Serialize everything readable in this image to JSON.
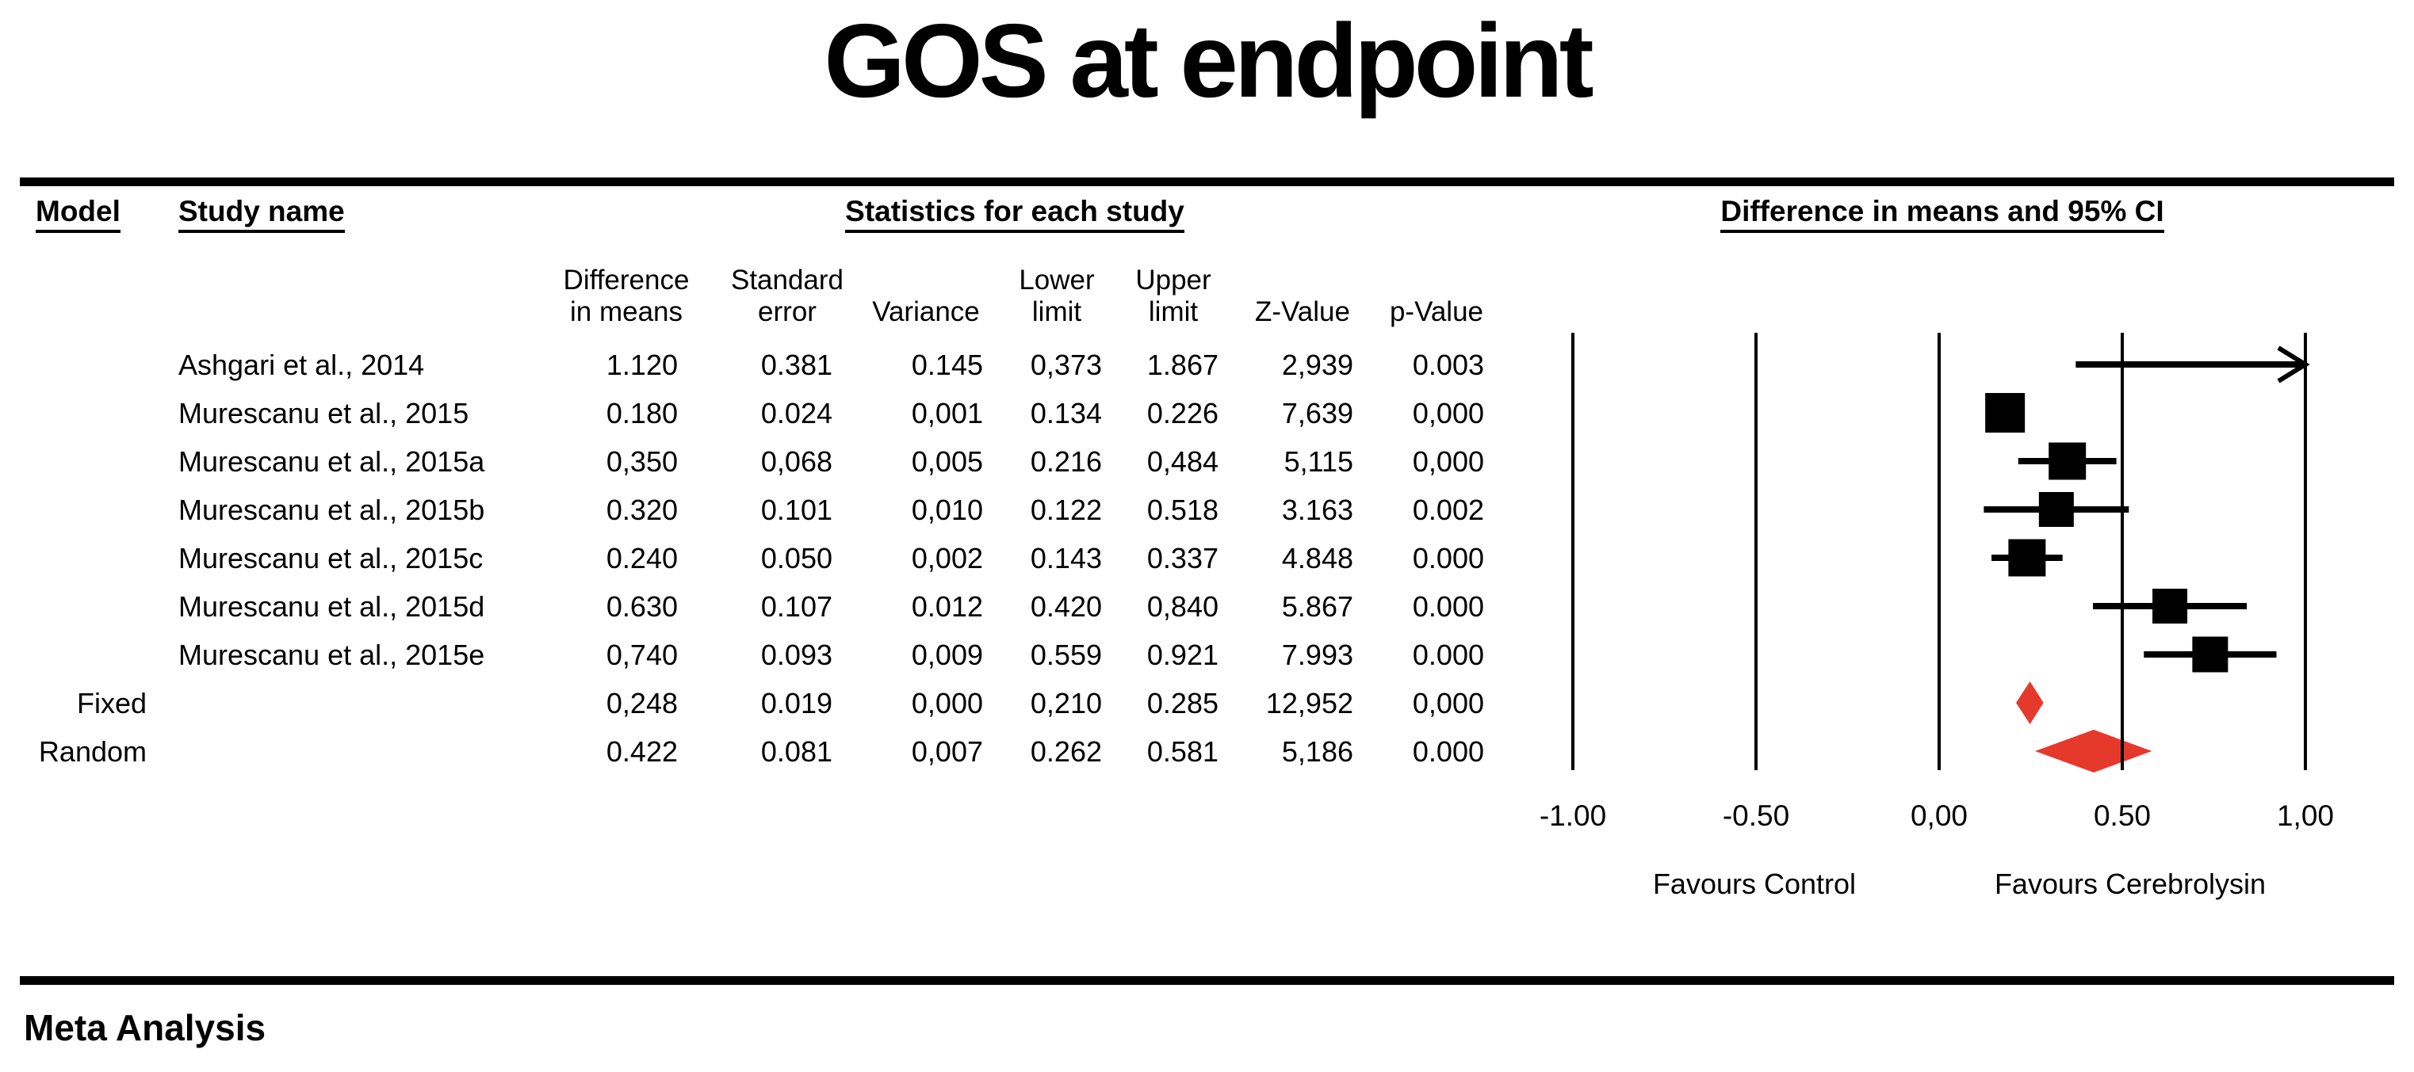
{
  "title": "GOS at endpoint",
  "footer": "Meta Analysis",
  "headers": {
    "model": "Model",
    "study_name": "Study name",
    "stats_group": "Statistics for each study",
    "ci_group": "Difference in means and 95% CI",
    "stat_cols": [
      "Difference\nin means",
      "Standard\nerror",
      "Variance",
      "Lower\nlimit",
      "Upper\nlimit",
      "Z-Value",
      "p-Value"
    ]
  },
  "chart_data": {
    "type": "forest",
    "title": "GOS at endpoint",
    "x_axis": {
      "min": -1.0,
      "max": 1.0,
      "tick_values": [
        -1.0,
        -0.5,
        0.0,
        0.5,
        1.0
      ],
      "tick_labels": [
        "-1.00",
        "-0.50",
        "0,00",
        "0.50",
        "1,00"
      ]
    },
    "footer_labels": {
      "left": "Favours Control",
      "right": "Favours Cerebrolysin"
    },
    "colors": {
      "marker": "#000000",
      "summary_diamond": "#e5392c"
    },
    "grid": true,
    "rows": [
      {
        "model": "",
        "study": "Ashgari et al., 2014",
        "difference_in_means": "1.120",
        "standard_error": "0.381",
        "variance": "0.145",
        "lower_limit": "0,373",
        "upper_limit": "1.867",
        "z_value": "2,939",
        "p_value": "0.003",
        "mean": 1.12,
        "lower": 0.373,
        "upper": 1.867,
        "marker": "arrow-right"
      },
      {
        "model": "",
        "study": "Murescanu et al., 2015",
        "difference_in_means": "0.180",
        "standard_error": "0.024",
        "variance": "0,001",
        "lower_limit": "0.134",
        "upper_limit": "0.226",
        "z_value": "7,639",
        "p_value": "0,000",
        "mean": 0.18,
        "lower": 0.134,
        "upper": 0.226,
        "marker": "square",
        "marker_size": 50
      },
      {
        "model": "",
        "study": "Murescanu et al., 2015a",
        "difference_in_means": "0,350",
        "standard_error": "0,068",
        "variance": "0,005",
        "lower_limit": "0.216",
        "upper_limit": "0,484",
        "z_value": "5,115",
        "p_value": "0,000",
        "mean": 0.35,
        "lower": 0.216,
        "upper": 0.484,
        "marker": "square",
        "marker_size": 47
      },
      {
        "model": "",
        "study": "Murescanu et al., 2015b",
        "difference_in_means": "0.320",
        "standard_error": "0.101",
        "variance": "0,010",
        "lower_limit": "0.122",
        "upper_limit": "0.518",
        "z_value": "3.163",
        "p_value": "0.002",
        "mean": 0.32,
        "lower": 0.122,
        "upper": 0.518,
        "marker": "square",
        "marker_size": 44
      },
      {
        "model": "",
        "study": "Murescanu et al., 2015c",
        "difference_in_means": "0.240",
        "standard_error": "0.050",
        "variance": "0,002",
        "lower_limit": "0.143",
        "upper_limit": "0.337",
        "z_value": "4.848",
        "p_value": "0.000",
        "mean": 0.24,
        "lower": 0.143,
        "upper": 0.337,
        "marker": "square",
        "marker_size": 47
      },
      {
        "model": "",
        "study": "Murescanu et al., 2015d",
        "difference_in_means": "0.630",
        "standard_error": "0.107",
        "variance": "0.012",
        "lower_limit": "0.420",
        "upper_limit": "0,840",
        "z_value": "5.867",
        "p_value": "0.000",
        "mean": 0.63,
        "lower": 0.42,
        "upper": 0.84,
        "marker": "square",
        "marker_size": 44
      },
      {
        "model": "",
        "study": "Murescanu et al., 2015e",
        "difference_in_means": "0,740",
        "standard_error": "0.093",
        "variance": "0,009",
        "lower_limit": "0.559",
        "upper_limit": "0.921",
        "z_value": "7.993",
        "p_value": "0.000",
        "mean": 0.74,
        "lower": 0.559,
        "upper": 0.921,
        "marker": "square",
        "marker_size": 45
      },
      {
        "model": "Fixed",
        "study": "",
        "difference_in_means": "0,248",
        "standard_error": "0.019",
        "variance": "0,000",
        "lower_limit": "0,210",
        "upper_limit": "0.285",
        "z_value": "12,952",
        "p_value": "0,000",
        "mean": 0.248,
        "lower": 0.21,
        "upper": 0.285,
        "marker": "diamond"
      },
      {
        "model": "Random",
        "study": "",
        "difference_in_means": "0.422",
        "standard_error": "0.081",
        "variance": "0,007",
        "lower_limit": "0.262",
        "upper_limit": "0.581",
        "z_value": "5,186",
        "p_value": "0.000",
        "mean": 0.422,
        "lower": 0.262,
        "upper": 0.581,
        "marker": "diamond"
      }
    ]
  }
}
